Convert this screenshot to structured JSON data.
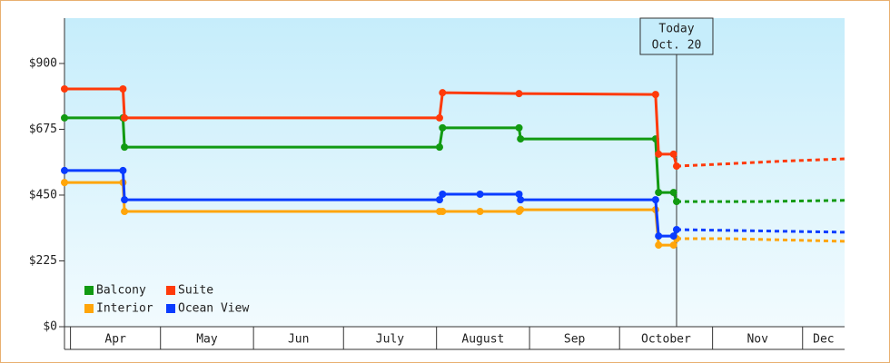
{
  "chart_data": {
    "type": "line",
    "ylim": [
      0,
      1055
    ],
    "yticks": [
      {
        "value": 0,
        "label": "$0"
      },
      {
        "value": 225,
        "label": "$225"
      },
      {
        "value": 450,
        "label": "$450"
      },
      {
        "value": 675,
        "label": "$675"
      },
      {
        "value": 900,
        "label": "$900"
      }
    ],
    "xlim": [
      -2,
      258
    ],
    "xticks": [
      {
        "value": 0,
        "label": "Apr"
      },
      {
        "value": 30,
        "label": "May"
      },
      {
        "value": 61,
        "label": "Jun"
      },
      {
        "value": 91,
        "label": "July"
      },
      {
        "value": 122,
        "label": "August"
      },
      {
        "value": 153,
        "label": "Sep"
      },
      {
        "value": 183,
        "label": "October"
      },
      {
        "value": 214,
        "label": "Nov"
      },
      {
        "value": 244,
        "label": "Dec"
      }
    ],
    "today": {
      "x": 202,
      "label": [
        "Today",
        "Oct. 20"
      ]
    },
    "series": [
      {
        "name": "Balcony",
        "color": "#129a12",
        "x": [
          -2,
          17.5,
          18,
          123,
          124,
          149.5,
          150,
          195,
          196,
          201,
          202
        ],
        "values": [
          714,
          714,
          614,
          614,
          680,
          680,
          642,
          642,
          459,
          459,
          428
        ],
        "forecast_x": [
          202,
          230,
          258
        ],
        "forecast_values": [
          428,
          428,
          432
        ]
      },
      {
        "name": "Suite",
        "color": "#ff3a0a",
        "x": [
          -2,
          17.5,
          18,
          123,
          124,
          149.5,
          195,
          196,
          201,
          202
        ],
        "values": [
          813,
          813,
          714,
          714,
          800,
          797,
          794,
          590,
          590,
          549
        ],
        "forecast_x": [
          202,
          219,
          237,
          258
        ],
        "forecast_values": [
          549,
          557,
          566,
          574
        ]
      },
      {
        "name": "Interior",
        "color": "#ffa50a",
        "x": [
          -2,
          17.5,
          18,
          123,
          124,
          136.5,
          149.5,
          150,
          195,
          196,
          201,
          202
        ],
        "values": [
          493,
          493,
          394,
          394,
          394,
          394,
          394,
          400,
          400,
          279,
          279,
          301
        ],
        "forecast_x": [
          202,
          219,
          258
        ],
        "forecast_values": [
          301,
          301,
          292
        ]
      },
      {
        "name": "Ocean View",
        "color": "#0a3cff",
        "x": [
          -2,
          17.5,
          18,
          123,
          124,
          136.5,
          149.5,
          150,
          195,
          196,
          201,
          202
        ],
        "values": [
          534,
          534,
          434,
          434,
          453,
          453,
          453,
          434,
          434,
          310,
          310,
          332
        ],
        "forecast_x": [
          202,
          258
        ],
        "forecast_values": [
          332,
          323
        ]
      }
    ]
  }
}
